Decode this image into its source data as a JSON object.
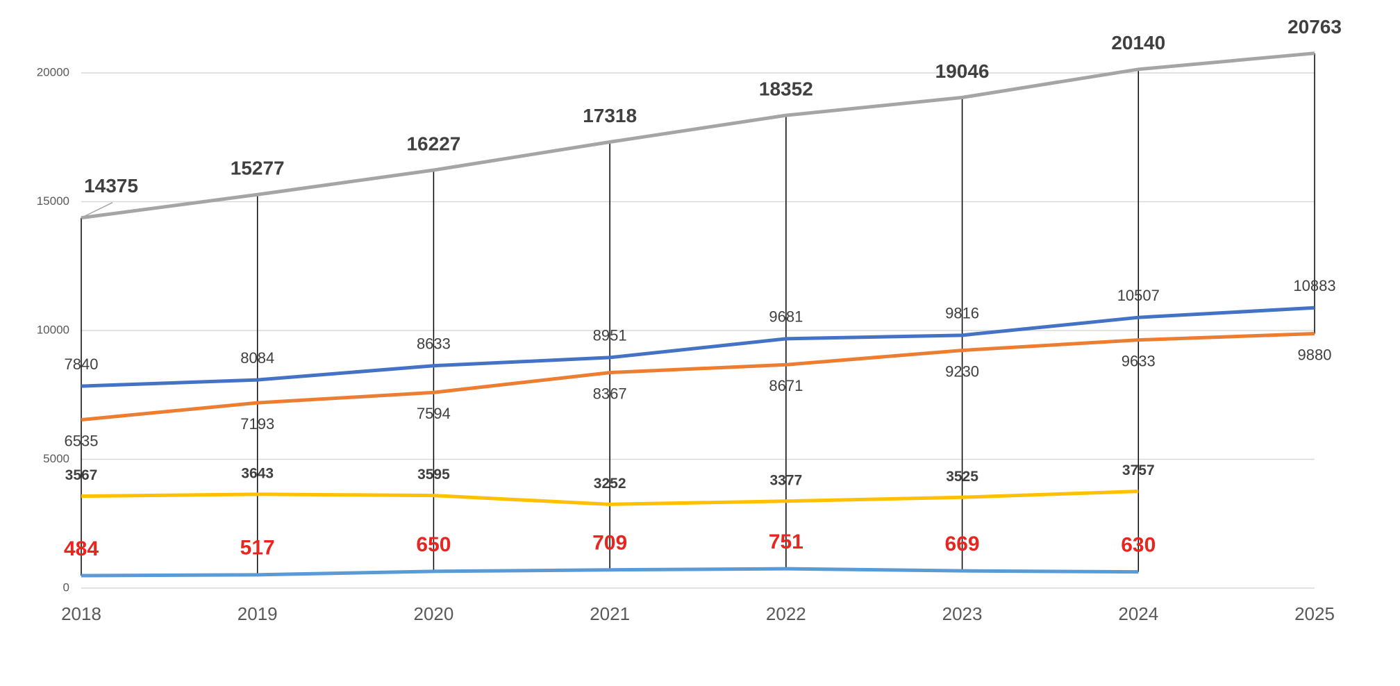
{
  "chart_data": {
    "type": "line",
    "categories": [
      "2018",
      "2019",
      "2020",
      "2021",
      "2022",
      "2023",
      "2024",
      "2025"
    ],
    "series": [
      {
        "color": "#a5a5a5",
        "values": [
          14375,
          15277,
          16227,
          17318,
          18352,
          19046,
          20140,
          20763
        ]
      },
      {
        "color": "#4472c4",
        "values": [
          7840,
          8084,
          8633,
          8951,
          9681,
          9816,
          10507,
          10883
        ]
      },
      {
        "color": "#ed7d31",
        "values": [
          6535,
          7193,
          7594,
          8367,
          8671,
          9230,
          9633,
          9880
        ]
      },
      {
        "color": "#ffc000",
        "values": [
          3567,
          3643,
          3595,
          3252,
          3377,
          3525,
          3757,
          null
        ]
      },
      {
        "color": "#5b9bd5",
        "values": [
          484,
          517,
          650,
          709,
          751,
          669,
          630,
          null
        ]
      }
    ],
    "ylim": [
      0,
      20000
    ],
    "yticks": [
      0,
      5000,
      10000,
      15000,
      20000
    ],
    "grid": true
  }
}
